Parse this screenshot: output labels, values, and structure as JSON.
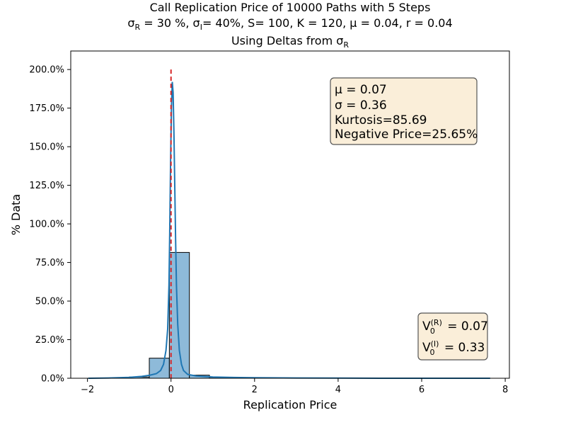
{
  "chart_data": {
    "type": "bar",
    "title_line1": "Call Replication Price of 10000 Paths with 5 Steps",
    "title_line2_parts": [
      "σ",
      "R",
      " = 30 %, σ",
      "I",
      "= 40%, S= 100, K = 120, μ = 0.04, r = 0.04"
    ],
    "subtitle_parts": [
      "Using Deltas from σ",
      "R"
    ],
    "xlabel": "Replication Price",
    "ylabel": "% Data",
    "xlim": [
      -2.4,
      8.1
    ],
    "ylim": [
      0,
      2.12
    ],
    "x_ticks": [
      -2,
      0,
      2,
      4,
      6,
      8
    ],
    "x_tick_labels": [
      "−2",
      "0",
      "2",
      "4",
      "6",
      "8"
    ],
    "y_ticks": [
      0,
      0.25,
      0.5,
      0.75,
      1.0,
      1.25,
      1.5,
      1.75,
      2.0
    ],
    "y_tick_labels": [
      "0.0%",
      "25.0%",
      "50.0%",
      "75.0%",
      "100.0%",
      "125.0%",
      "150.0%",
      "175.0%",
      "200.0%"
    ],
    "bins": [
      {
        "x0": -1.98,
        "x1": -1.5,
        "value": 0.0
      },
      {
        "x0": -1.5,
        "x1": -1.0,
        "value": 0.002
      },
      {
        "x0": -1.0,
        "x1": -0.52,
        "value": 0.008
      },
      {
        "x0": -0.52,
        "x1": -0.04,
        "value": 0.13
      },
      {
        "x0": -0.04,
        "x1": 0.44,
        "value": 0.815
      },
      {
        "x0": 0.44,
        "x1": 0.92,
        "value": 0.02
      },
      {
        "x0": 0.92,
        "x1": 1.4,
        "value": 0.006
      },
      {
        "x0": 1.4,
        "x1": 1.88,
        "value": 0.003
      },
      {
        "x0": 1.88,
        "x1": 2.36,
        "value": 0.002
      },
      {
        "x0": 2.36,
        "x1": 2.84,
        "value": 0.001
      },
      {
        "x0": 2.84,
        "x1": 3.32,
        "value": 0.001
      },
      {
        "x0": 3.32,
        "x1": 3.8,
        "value": 0.0
      },
      {
        "x0": 3.8,
        "x1": 4.28,
        "value": 0.0
      },
      {
        "x0": 4.28,
        "x1": 4.76,
        "value": 0.0
      },
      {
        "x0": 4.76,
        "x1": 5.24,
        "value": 0.0
      },
      {
        "x0": 5.24,
        "x1": 5.72,
        "value": 0.0
      },
      {
        "x0": 5.72,
        "x1": 6.2,
        "value": 0.0
      },
      {
        "x0": 6.2,
        "x1": 6.68,
        "value": 0.0
      },
      {
        "x0": 6.68,
        "x1": 7.16,
        "value": 0.0
      },
      {
        "x0": 7.16,
        "x1": 7.64,
        "value": 0.0
      }
    ],
    "kde": [
      [
        -1.98,
        0.0
      ],
      [
        -1.5,
        0.002
      ],
      [
        -1.0,
        0.006
      ],
      [
        -0.7,
        0.012
      ],
      [
        -0.5,
        0.02
      ],
      [
        -0.35,
        0.03
      ],
      [
        -0.25,
        0.05
      ],
      [
        -0.18,
        0.09
      ],
      [
        -0.12,
        0.18
      ],
      [
        -0.08,
        0.32
      ],
      [
        -0.05,
        0.6
      ],
      [
        -0.03,
        0.95
      ],
      [
        -0.01,
        1.4
      ],
      [
        0.01,
        1.75
      ],
      [
        0.03,
        1.92
      ],
      [
        0.05,
        1.85
      ],
      [
        0.07,
        1.6
      ],
      [
        0.09,
        1.25
      ],
      [
        0.11,
        0.9
      ],
      [
        0.13,
        0.6
      ],
      [
        0.16,
        0.35
      ],
      [
        0.2,
        0.18
      ],
      [
        0.25,
        0.09
      ],
      [
        0.3,
        0.05
      ],
      [
        0.4,
        0.025
      ],
      [
        0.6,
        0.015
      ],
      [
        1.0,
        0.008
      ],
      [
        1.5,
        0.005
      ],
      [
        2.0,
        0.003
      ],
      [
        3.0,
        0.002
      ],
      [
        4.0,
        0.001
      ],
      [
        5.0,
        0.0
      ],
      [
        6.0,
        0.0
      ],
      [
        7.0,
        0.0
      ],
      [
        7.64,
        0.0
      ]
    ],
    "reference_line_x": 0,
    "stats_box_lines": [
      "μ = 0.07",
      "σ = 0.36",
      "Kurtosis=85.69",
      "Negative Price=25.65%"
    ],
    "value_box": {
      "line1": {
        "base": "V",
        "sub": "0",
        "sup": "(R)",
        "value": " = 0.07"
      },
      "line2": {
        "base": "V",
        "sub": "0",
        "sup": "(I)",
        "value": " = 0.33"
      }
    },
    "colors": {
      "bar_fill": "#8ebad9",
      "bar_edge": "#000000",
      "kde": "#1f77b4",
      "ref_line": "#d62728",
      "box_fill": "#f5deb3",
      "box_edge": "#555555"
    }
  }
}
